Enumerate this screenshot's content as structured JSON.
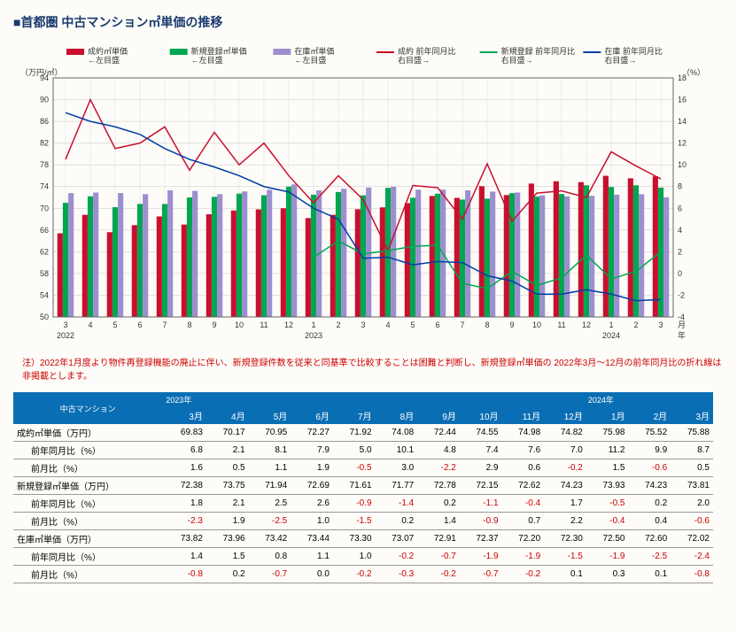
{
  "title": "■首都圏 中古マンション㎡単価の推移",
  "chart": {
    "left_unit": "（万円/㎡）",
    "right_unit": "（%）",
    "x_unit_top": "月",
    "x_unit_bot": "年",
    "left_ylim": [
      50,
      94
    ],
    "left_ticks": [
      50,
      54,
      58,
      62,
      66,
      70,
      74,
      78,
      82,
      86,
      90,
      94
    ],
    "right_ylim": [
      -4,
      18
    ],
    "right_ticks": [
      -4,
      -2,
      0,
      2,
      4,
      6,
      8,
      10,
      12,
      14,
      16,
      18
    ],
    "x_labels": [
      "3",
      "4",
      "5",
      "6",
      "7",
      "8",
      "9",
      "10",
      "11",
      "12",
      "1",
      "2",
      "3",
      "4",
      "5",
      "6",
      "7",
      "8",
      "9",
      "10",
      "11",
      "12",
      "1",
      "2",
      "3"
    ],
    "x_year_labels": [
      [
        "2022",
        0
      ],
      [
        "2023",
        10
      ],
      [
        "2024",
        22
      ]
    ],
    "colors": {
      "red": "#c8102e",
      "green": "#00a651",
      "blue": "#003da5",
      "purple": "#9d8fcf",
      "grid": "#c8c8c8",
      "axis": "#666"
    },
    "legend": [
      {
        "label": "成約㎡単価\n←左目盛",
        "type": "bar",
        "color": "#c8102e"
      },
      {
        "label": "新規登録㎡単価\n←左目盛",
        "type": "bar",
        "color": "#00a651"
      },
      {
        "label": "在庫㎡単価\n←左目盛",
        "type": "bar",
        "color": "#9d8fcf"
      },
      {
        "label": "成約 前年同月比\n右目盛→",
        "type": "line",
        "color": "#c8102e"
      },
      {
        "label": "新規登録 前年同月比\n右目盛→",
        "type": "line",
        "color": "#00a651"
      },
      {
        "label": "在庫 前年同月比\n右目盛→",
        "type": "line",
        "color": "#003da5"
      }
    ],
    "bars": {
      "red": [
        65.4,
        68.8,
        65.6,
        66.9,
        68.5,
        67.0,
        68.9,
        69.6,
        69.8,
        70.0,
        68.2,
        68.8,
        69.83,
        70.17,
        70.95,
        72.27,
        71.92,
        74.08,
        72.44,
        74.55,
        74.98,
        74.82,
        75.98,
        75.52,
        75.88
      ],
      "green": [
        71.0,
        72.2,
        70.2,
        70.8,
        70.8,
        72.0,
        72.1,
        72.7,
        72.4,
        74.0,
        72.5,
        73.0,
        72.38,
        73.75,
        71.94,
        72.69,
        71.61,
        71.77,
        72.78,
        72.15,
        72.62,
        74.23,
        73.93,
        74.23,
        73.81
      ],
      "purple": [
        72.8,
        72.9,
        72.8,
        72.6,
        73.3,
        73.2,
        72.6,
        73.1,
        73.4,
        74.4,
        73.3,
        73.6,
        73.82,
        73.96,
        73.42,
        73.44,
        73.3,
        73.07,
        72.91,
        72.37,
        72.2,
        72.3,
        72.5,
        72.6,
        72.02
      ]
    },
    "lines": {
      "red": [
        10.5,
        16.0,
        11.5,
        12.0,
        13.5,
        9.5,
        13.0,
        10.0,
        12.0,
        9.0,
        6.5,
        9.0,
        6.8,
        2.1,
        8.1,
        7.9,
        5.0,
        10.1,
        4.8,
        7.4,
        7.6,
        7.0,
        11.2,
        9.9,
        8.7
      ],
      "green": [
        null,
        null,
        null,
        null,
        null,
        null,
        null,
        null,
        null,
        null,
        1.5,
        3.0,
        1.8,
        2.1,
        2.5,
        2.6,
        -0.9,
        -1.4,
        0.2,
        -1.1,
        -0.4,
        1.7,
        -0.5,
        0.2,
        2.0
      ],
      "blue": [
        14.8,
        14.0,
        13.5,
        12.8,
        11.5,
        10.5,
        9.8,
        9.0,
        8.0,
        7.5,
        6.0,
        5.0,
        1.4,
        1.5,
        0.8,
        1.1,
        1.0,
        -0.2,
        -0.7,
        -1.9,
        -1.9,
        -1.5,
        -1.9,
        -2.5,
        -2.4
      ]
    }
  },
  "note_label": "注）",
  "note": "2022年1月度より物件再登録機能の廃止に伴い、新規登録件数を従来と同基準で比較することは困難と判断し、新規登録㎡単価の\n2022年3月～12月の前年同月比の折れ線は非掲載とします。",
  "table": {
    "row_header": "中古マンション",
    "year_spans": [
      {
        "label": "2023年",
        "cols": 10
      },
      {
        "label": "2024年",
        "cols": 3
      }
    ],
    "months": [
      "3月",
      "4月",
      "5月",
      "6月",
      "7月",
      "8月",
      "9月",
      "10月",
      "11月",
      "12月",
      "1月",
      "2月",
      "3月"
    ],
    "rows": [
      {
        "label": "成約㎡単価（万円）",
        "sub": false,
        "vals": [
          69.83,
          70.17,
          70.95,
          72.27,
          71.92,
          74.08,
          72.44,
          74.55,
          74.98,
          74.82,
          75.98,
          75.52,
          75.88
        ]
      },
      {
        "label": "前年同月比（%）",
        "sub": true,
        "vals": [
          6.8,
          2.1,
          8.1,
          7.9,
          5.0,
          10.1,
          4.8,
          7.4,
          7.6,
          7.0,
          11.2,
          9.9,
          8.7
        ]
      },
      {
        "label": "前月比（%）",
        "sub": true,
        "vals": [
          1.6,
          0.5,
          1.1,
          1.9,
          -0.5,
          3.0,
          -2.2,
          2.9,
          0.6,
          -0.2,
          1.5,
          -0.6,
          0.5
        ]
      },
      {
        "label": "新規登録㎡単価（万円）",
        "sub": false,
        "vals": [
          72.38,
          73.75,
          71.94,
          72.69,
          71.61,
          71.77,
          72.78,
          72.15,
          72.62,
          74.23,
          73.93,
          74.23,
          73.81
        ]
      },
      {
        "label": "前年同月比（%）",
        "sub": true,
        "vals": [
          1.8,
          2.1,
          2.5,
          2.6,
          -0.9,
          -1.4,
          0.2,
          -1.1,
          -0.4,
          1.7,
          -0.5,
          0.2,
          2.0
        ]
      },
      {
        "label": "前月比（%）",
        "sub": true,
        "vals": [
          -2.3,
          1.9,
          -2.5,
          1.0,
          -1.5,
          0.2,
          1.4,
          -0.9,
          0.7,
          2.2,
          -0.4,
          0.4,
          -0.6
        ]
      },
      {
        "label": "在庫㎡単価（万円）",
        "sub": false,
        "vals": [
          73.82,
          73.96,
          73.42,
          73.44,
          73.3,
          73.07,
          72.91,
          72.37,
          72.2,
          72.3,
          72.5,
          72.6,
          72.02
        ]
      },
      {
        "label": "前年同月比（%）",
        "sub": true,
        "vals": [
          1.4,
          1.5,
          0.8,
          1.1,
          1.0,
          -0.2,
          -0.7,
          -1.9,
          -1.9,
          -1.5,
          -1.9,
          -2.5,
          -2.4
        ]
      },
      {
        "label": "前月比（%）",
        "sub": true,
        "vals": [
          -0.8,
          0.2,
          -0.7,
          0.0,
          -0.2,
          -0.3,
          -0.2,
          -0.7,
          -0.2,
          0.1,
          0.3,
          0.1,
          -0.8
        ]
      }
    ]
  }
}
